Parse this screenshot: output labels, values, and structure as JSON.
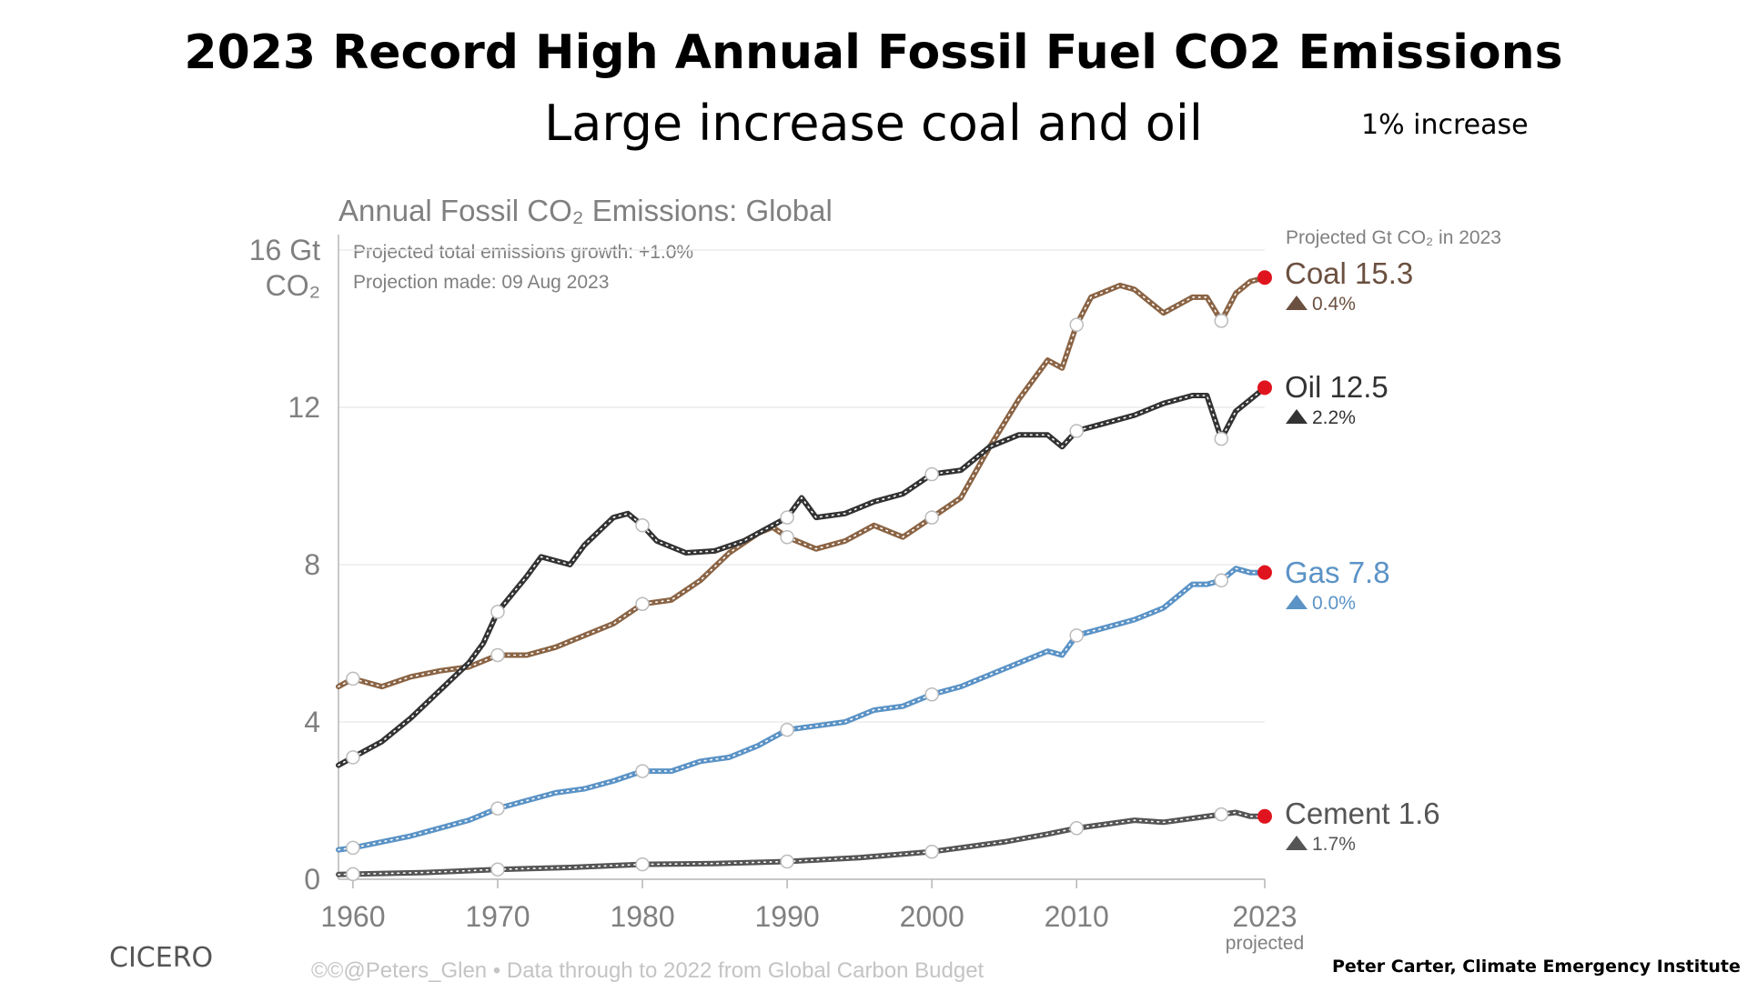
{
  "slide": {
    "title": "2023 Record High Annual Fossil Fuel CO2 Emissions",
    "subtitle": "Large increase coal and oil",
    "increase_note": "1% increase",
    "source_left": "CICERO",
    "source_right": "Peter Carter, Climate Emergency Institute"
  },
  "chart_data": {
    "type": "line",
    "title": "Annual Fossil CO₂ Emissions: Global",
    "y_unit_top": "16 Gt",
    "y_unit_bottom": "CO₂",
    "notes": [
      "Projected total emissions growth: +1.0%",
      "Projection made: 09 Aug 2023"
    ],
    "legend_header": "Projected Gt CO₂ in 2023",
    "footer": "©©@Peters_Glen  •  Data through to 2022 from Global Carbon Budget",
    "projected_label": "projected",
    "x_ticks": [
      "1960",
      "1970",
      "1980",
      "1990",
      "2000",
      "2010",
      "2023"
    ],
    "x_tick_values": [
      1960,
      1970,
      1980,
      1990,
      2000,
      2010,
      2023
    ],
    "y_ticks": [
      "16 Gt",
      "12",
      "8",
      "4",
      "0"
    ],
    "y_tick_values": [
      16,
      12,
      8,
      4,
      0
    ],
    "xlim": [
      1959,
      2023
    ],
    "ylim": [
      0,
      16
    ],
    "grid": true,
    "series": [
      {
        "name": "Coal",
        "label": "Coal 15.3",
        "change": "0.4%",
        "color": "#8a6445",
        "label_color": "#6b5040",
        "points": [
          [
            1959,
            4.9
          ],
          [
            1960,
            5.1
          ],
          [
            1962,
            4.9
          ],
          [
            1964,
            5.15
          ],
          [
            1966,
            5.3
          ],
          [
            1968,
            5.4
          ],
          [
            1970,
            5.7
          ],
          [
            1972,
            5.7
          ],
          [
            1974,
            5.9
          ],
          [
            1976,
            6.2
          ],
          [
            1978,
            6.5
          ],
          [
            1980,
            7.0
          ],
          [
            1982,
            7.1
          ],
          [
            1984,
            7.6
          ],
          [
            1986,
            8.3
          ],
          [
            1988,
            8.8
          ],
          [
            1989,
            8.95
          ],
          [
            1990,
            8.7
          ],
          [
            1992,
            8.4
          ],
          [
            1994,
            8.6
          ],
          [
            1996,
            9.0
          ],
          [
            1998,
            8.7
          ],
          [
            2000,
            9.2
          ],
          [
            2002,
            9.7
          ],
          [
            2004,
            11.0
          ],
          [
            2006,
            12.2
          ],
          [
            2008,
            13.2
          ],
          [
            2009,
            13.0
          ],
          [
            2010,
            14.1
          ],
          [
            2011,
            14.8
          ],
          [
            2013,
            15.1
          ],
          [
            2014,
            15.0
          ],
          [
            2016,
            14.4
          ],
          [
            2018,
            14.8
          ],
          [
            2019,
            14.8
          ],
          [
            2020,
            14.2
          ],
          [
            2021,
            14.9
          ],
          [
            2022,
            15.2
          ],
          [
            2023,
            15.3
          ]
        ]
      },
      {
        "name": "Oil",
        "label": "Oil 12.5",
        "change": "2.2%",
        "color": "#333333",
        "label_color": "#333333",
        "points": [
          [
            1959,
            2.9
          ],
          [
            1960,
            3.1
          ],
          [
            1962,
            3.5
          ],
          [
            1964,
            4.1
          ],
          [
            1966,
            4.8
          ],
          [
            1968,
            5.5
          ],
          [
            1969,
            6.0
          ],
          [
            1970,
            6.8
          ],
          [
            1972,
            7.7
          ],
          [
            1973,
            8.2
          ],
          [
            1975,
            8.0
          ],
          [
            1976,
            8.5
          ],
          [
            1978,
            9.2
          ],
          [
            1979,
            9.3
          ],
          [
            1980,
            9.0
          ],
          [
            1981,
            8.6
          ],
          [
            1983,
            8.3
          ],
          [
            1985,
            8.35
          ],
          [
            1987,
            8.6
          ],
          [
            1989,
            9.0
          ],
          [
            1990,
            9.2
          ],
          [
            1991,
            9.7
          ],
          [
            1992,
            9.2
          ],
          [
            1994,
            9.3
          ],
          [
            1996,
            9.6
          ],
          [
            1998,
            9.8
          ],
          [
            2000,
            10.3
          ],
          [
            2002,
            10.4
          ],
          [
            2004,
            11.0
          ],
          [
            2006,
            11.3
          ],
          [
            2008,
            11.3
          ],
          [
            2009,
            11.0
          ],
          [
            2010,
            11.4
          ],
          [
            2012,
            11.6
          ],
          [
            2014,
            11.8
          ],
          [
            2016,
            12.1
          ],
          [
            2018,
            12.3
          ],
          [
            2019,
            12.3
          ],
          [
            2020,
            11.2
          ],
          [
            2021,
            11.9
          ],
          [
            2022,
            12.2
          ],
          [
            2023,
            12.5
          ]
        ]
      },
      {
        "name": "Gas",
        "label": "Gas 7.8",
        "change": "0.0%",
        "color": "#5b93c6",
        "label_color": "#5b93c6",
        "points": [
          [
            1959,
            0.75
          ],
          [
            1960,
            0.8
          ],
          [
            1962,
            0.95
          ],
          [
            1964,
            1.1
          ],
          [
            1966,
            1.3
          ],
          [
            1968,
            1.5
          ],
          [
            1970,
            1.8
          ],
          [
            1972,
            2.0
          ],
          [
            1974,
            2.2
          ],
          [
            1976,
            2.3
          ],
          [
            1978,
            2.5
          ],
          [
            1980,
            2.75
          ],
          [
            1982,
            2.75
          ],
          [
            1984,
            3.0
          ],
          [
            1986,
            3.1
          ],
          [
            1988,
            3.4
          ],
          [
            1990,
            3.8
          ],
          [
            1992,
            3.9
          ],
          [
            1994,
            4.0
          ],
          [
            1996,
            4.3
          ],
          [
            1998,
            4.4
          ],
          [
            2000,
            4.7
          ],
          [
            2002,
            4.9
          ],
          [
            2004,
            5.2
          ],
          [
            2006,
            5.5
          ],
          [
            2008,
            5.8
          ],
          [
            2009,
            5.7
          ],
          [
            2010,
            6.2
          ],
          [
            2012,
            6.4
          ],
          [
            2014,
            6.6
          ],
          [
            2016,
            6.9
          ],
          [
            2018,
            7.5
          ],
          [
            2019,
            7.5
          ],
          [
            2020,
            7.6
          ],
          [
            2021,
            7.9
          ],
          [
            2022,
            7.8
          ],
          [
            2023,
            7.8
          ]
        ]
      },
      {
        "name": "Cement",
        "label": "Cement 1.6",
        "change": "1.7%",
        "color": "#555555",
        "label_color": "#555555",
        "points": [
          [
            1959,
            0.12
          ],
          [
            1960,
            0.13
          ],
          [
            1965,
            0.17
          ],
          [
            1970,
            0.25
          ],
          [
            1975,
            0.3
          ],
          [
            1980,
            0.38
          ],
          [
            1985,
            0.4
          ],
          [
            1990,
            0.45
          ],
          [
            1995,
            0.55
          ],
          [
            2000,
            0.7
          ],
          [
            2005,
            0.95
          ],
          [
            2008,
            1.15
          ],
          [
            2010,
            1.3
          ],
          [
            2012,
            1.4
          ],
          [
            2014,
            1.5
          ],
          [
            2016,
            1.45
          ],
          [
            2018,
            1.55
          ],
          [
            2020,
            1.65
          ],
          [
            2021,
            1.7
          ],
          [
            2022,
            1.6
          ],
          [
            2023,
            1.6
          ]
        ]
      }
    ]
  }
}
